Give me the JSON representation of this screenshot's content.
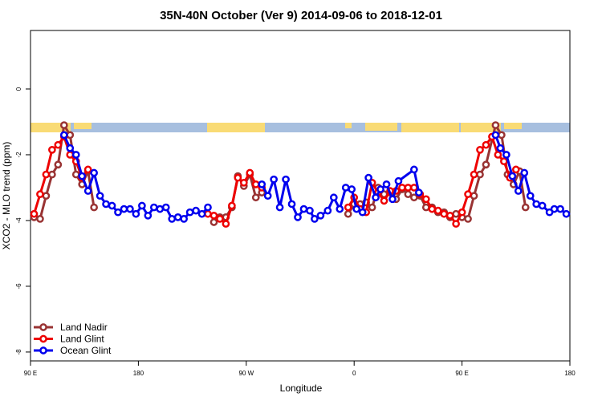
{
  "chart_data": {
    "type": "line",
    "title": "35N-40N October (Ver 9)   2014-09-06 to 2018-12-01",
    "x_label": "Longitude",
    "y_label": "XCO2 - MLO trend (ppm)",
    "xlim": [
      90,
      540
    ],
    "ylim": [
      -8.27,
      1.78
    ],
    "xticks": [
      {
        "value": 90,
        "label": "90 E"
      },
      180,
      {
        "value": 270,
        "label": "90 W"
      },
      {
        "value": 360,
        "label": "0"
      },
      {
        "value": 450,
        "label": "90 E"
      },
      {
        "value": 540,
        "label": "180"
      }
    ],
    "yticks": [
      -8,
      -6,
      -4,
      -2,
      0
    ],
    "legend": "bottom-left",
    "series": [
      {
        "name": "Land Nadir",
        "color": "#993333",
        "x": [
          93,
          98,
          103,
          108,
          113,
          118,
          123,
          128,
          133,
          138,
          143,
          null,
          243,
          248,
          253,
          258,
          263,
          268,
          273,
          278,
          283,
          null,
          355,
          360,
          365,
          370,
          375,
          380,
          385,
          390,
          395,
          400,
          405,
          410,
          415,
          420,
          425,
          430,
          435,
          440,
          445,
          450,
          455,
          460,
          465,
          470,
          478,
          483,
          488,
          493,
          498,
          503
        ],
        "values": [
          -3.9,
          -3.95,
          -3.25,
          -2.6,
          -2.3,
          -1.1,
          -1.4,
          -2.6,
          -2.9,
          -2.5,
          -3.6,
          null,
          -4.05,
          -3.9,
          -3.9,
          -3.6,
          -2.65,
          -2.95,
          -2.6,
          -3.3,
          -3.15,
          null,
          -3.8,
          -3.5,
          -3.5,
          -3.45,
          -3.6,
          -3.0,
          -3.2,
          -3.15,
          -3.35,
          -3.05,
          -3.2,
          -3.3,
          -3.25,
          -3.6,
          -3.6,
          -3.75,
          -3.75,
          -3.9,
          -3.8,
          -3.9,
          -3.95,
          -3.25,
          -2.6,
          -2.3,
          -1.1,
          -1.4,
          -2.6,
          -2.9,
          -2.5,
          -3.6
        ]
      },
      {
        "name": "Land Glint",
        "color": "#ee0000",
        "x": [
          93,
          98,
          103,
          108,
          113,
          118,
          123,
          128,
          133,
          138,
          null,
          238,
          243,
          248,
          253,
          258,
          263,
          268,
          273,
          278,
          283,
          null,
          355,
          360,
          365,
          370,
          375,
          380,
          385,
          390,
          395,
          400,
          405,
          410,
          415,
          420,
          425,
          430,
          435,
          440,
          445,
          450,
          455,
          460,
          465,
          470,
          475,
          480,
          485,
          490,
          495
        ],
        "values": [
          -3.8,
          -3.2,
          -2.6,
          -1.85,
          -1.7,
          -1.45,
          -2.0,
          -2.2,
          -2.7,
          -2.45,
          null,
          -3.8,
          -3.85,
          -3.95,
          -4.1,
          -3.55,
          -2.7,
          -2.85,
          -2.55,
          -2.9,
          -3.0,
          null,
          -3.6,
          -3.3,
          -3.65,
          -3.75,
          -2.85,
          -3.15,
          -3.4,
          -3.1,
          -3.1,
          -3.0,
          -3.0,
          -3.0,
          -3.2,
          -3.35,
          -3.65,
          -3.7,
          -3.8,
          -3.85,
          -4.1,
          -3.75,
          -3.2,
          -2.6,
          -1.85,
          -1.7,
          -1.45,
          -2.0,
          -2.2,
          -2.7,
          -2.45
        ]
      },
      {
        "name": "Ocean Glint",
        "color": "#0000ee",
        "x": [
          118,
          123,
          128,
          133,
          138,
          143,
          148,
          153,
          158,
          163,
          168,
          173,
          178,
          183,
          188,
          193,
          198,
          203,
          208,
          213,
          218,
          223,
          228,
          233,
          238,
          null,
          283,
          288,
          293,
          298,
          303,
          308,
          313,
          318,
          323,
          327,
          332,
          338,
          343,
          348,
          353,
          358,
          362,
          367,
          372,
          378,
          382,
          387,
          392,
          397,
          410,
          414,
          null,
          478,
          482,
          487,
          492,
          497,
          502,
          507,
          512,
          517,
          523,
          527,
          532,
          537
        ],
        "values": [
          -1.4,
          -1.8,
          -2.0,
          -2.65,
          -3.1,
          -2.55,
          -3.25,
          -3.5,
          -3.55,
          -3.75,
          -3.65,
          -3.65,
          -3.8,
          -3.55,
          -3.85,
          -3.6,
          -3.65,
          -3.6,
          -3.95,
          -3.9,
          -3.95,
          -3.75,
          -3.7,
          -3.8,
          -3.6,
          null,
          -2.9,
          -3.25,
          -2.75,
          -3.6,
          -2.75,
          -3.5,
          -3.9,
          -3.65,
          -3.7,
          -3.95,
          -3.85,
          -3.7,
          -3.3,
          -3.65,
          -3.0,
          -3.05,
          -3.65,
          -3.75,
          -2.7,
          -3.3,
          -3.05,
          -2.9,
          -3.35,
          -2.8,
          -2.45,
          -3.15,
          null,
          -1.4,
          -1.8,
          -2.0,
          -2.65,
          -3.1,
          -2.55,
          -3.25,
          -3.5,
          -3.55,
          -3.75,
          -3.65,
          -3.65,
          -3.8
        ]
      }
    ]
  }
}
